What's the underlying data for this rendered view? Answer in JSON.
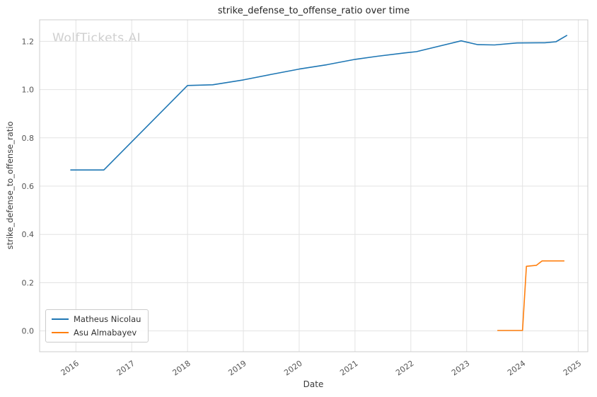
{
  "chart_data": {
    "type": "line",
    "title": "strike_defense_to_offense_ratio over time",
    "xlabel": "Date",
    "ylabel": "strike_defense_to_offense_ratio",
    "watermark": "WolfTickets.AI",
    "xlim": [
      2015.35,
      2025.17
    ],
    "ylim": [
      -0.086,
      1.289
    ],
    "x_ticks": [
      2016,
      2017,
      2018,
      2019,
      2020,
      2021,
      2022,
      2023,
      2024,
      2025
    ],
    "y_ticks": [
      0.0,
      0.2,
      0.4,
      0.6,
      0.8,
      1.0,
      1.2
    ],
    "grid": true,
    "legend_position": "lower left",
    "series": [
      {
        "name": "Matheus Nicolau",
        "color": "#1f77b4",
        "points": [
          [
            2015.9,
            0.667
          ],
          [
            2016.5,
            0.667
          ],
          [
            2018.0,
            1.017
          ],
          [
            2018.45,
            1.02
          ],
          [
            2019.0,
            1.04
          ],
          [
            2019.5,
            1.063
          ],
          [
            2020.0,
            1.085
          ],
          [
            2020.5,
            1.103
          ],
          [
            2021.0,
            1.125
          ],
          [
            2021.4,
            1.138
          ],
          [
            2021.9,
            1.152
          ],
          [
            2022.1,
            1.157
          ],
          [
            2022.9,
            1.202
          ],
          [
            2023.2,
            1.186
          ],
          [
            2023.5,
            1.185
          ],
          [
            2023.9,
            1.193
          ],
          [
            2024.4,
            1.194
          ],
          [
            2024.6,
            1.198
          ],
          [
            2024.8,
            1.225
          ]
        ]
      },
      {
        "name": "Asu Almabayev",
        "color": "#ff7f0e",
        "points": [
          [
            2023.55,
            0.002
          ],
          [
            2024.0,
            0.002
          ],
          [
            2024.07,
            0.268
          ],
          [
            2024.25,
            0.272
          ],
          [
            2024.35,
            0.29
          ],
          [
            2024.75,
            0.29
          ]
        ]
      }
    ]
  }
}
